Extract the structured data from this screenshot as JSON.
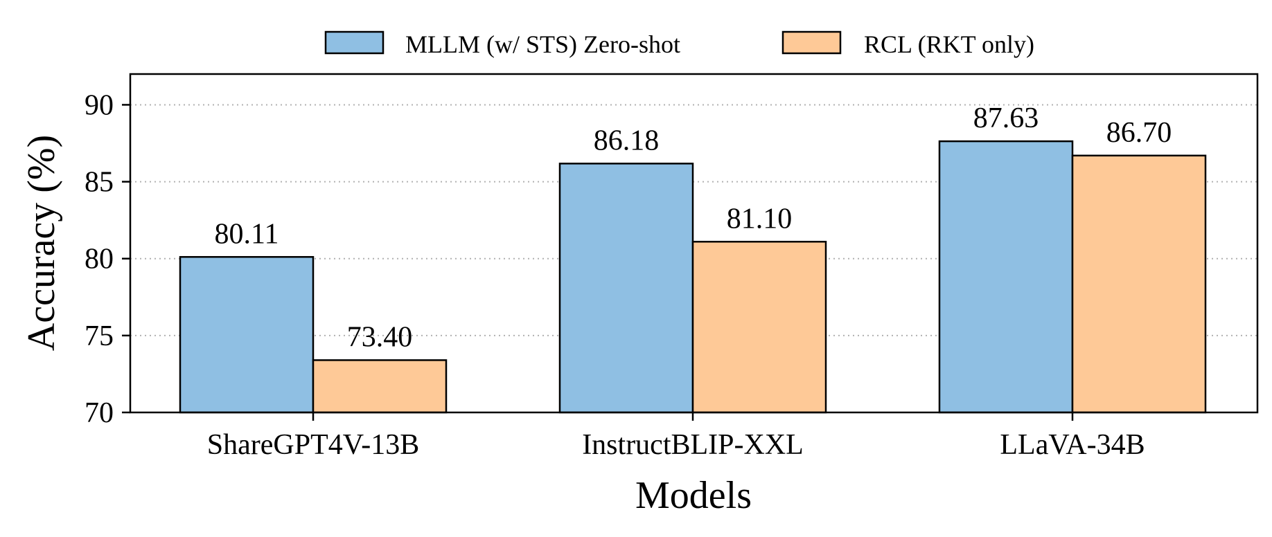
{
  "chart_data": {
    "type": "bar",
    "title": "",
    "xlabel": "Models",
    "ylabel": "Accuracy (%)",
    "categories": [
      "ShareGPT4V-13B",
      "InstructBLIP-XXL",
      "LLaVA-34B"
    ],
    "series": [
      {
        "name": "MLLM (w/ STS) Zero-shot",
        "color": "#8fbfe3",
        "values": [
          80.11,
          86.18,
          87.63
        ],
        "labels": [
          "80.11",
          "86.18",
          "87.63"
        ]
      },
      {
        "name": "RCL (RKT only)",
        "color": "#fec997",
        "values": [
          73.4,
          81.1,
          86.7
        ],
        "labels": [
          "73.40",
          "81.10",
          "86.70"
        ]
      }
    ],
    "ylim": [
      70,
      92
    ],
    "yticks": [
      70,
      75,
      80,
      85,
      90
    ],
    "ytick_labels": [
      "70",
      "75",
      "80",
      "85",
      "90"
    ],
    "grid": "horizontal dotted",
    "legend_position": "top-center"
  }
}
